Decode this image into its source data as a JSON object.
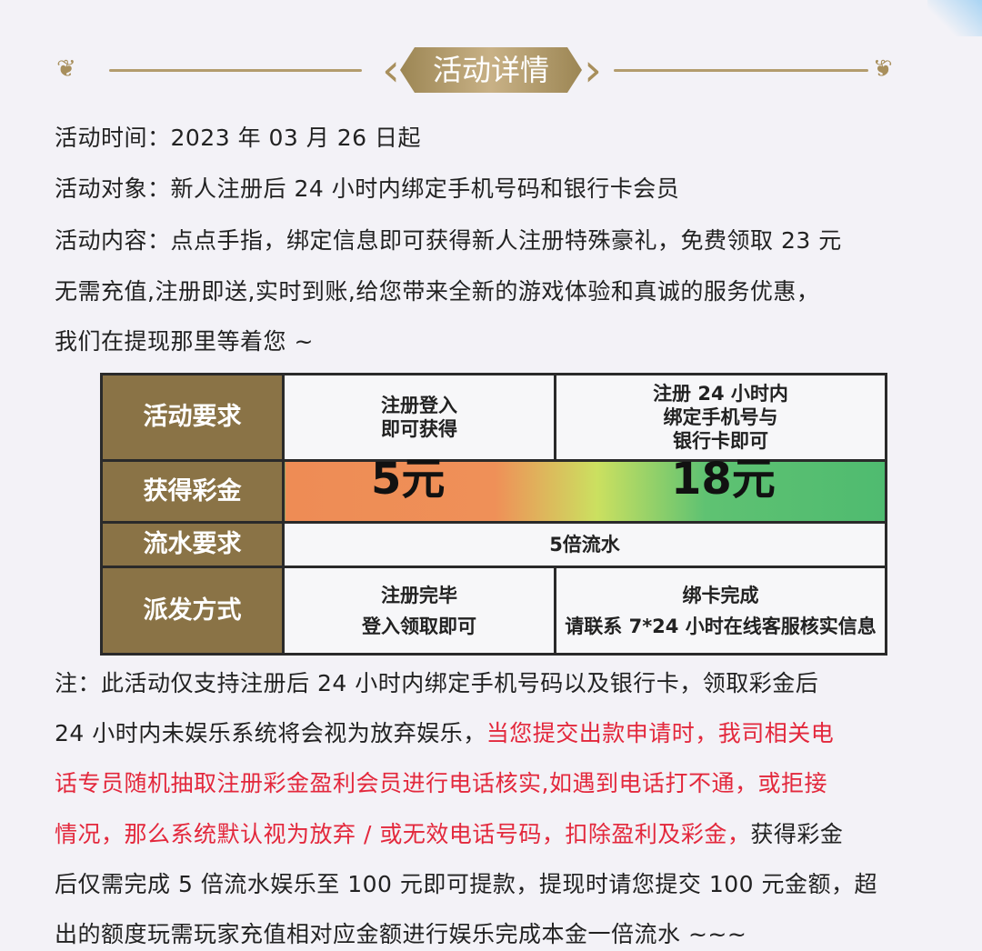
{
  "header": {
    "title": "活动详情"
  },
  "info": {
    "time": "活动时间：2023 年 03 月 26 日起",
    "target": "活动对象：新人注册后 24 小时内绑定手机号码和银行卡会员",
    "content_lines": [
      "活动内容：点点手指，绑定信息即可获得新人注册特殊豪礼，免费领取 23 元",
      "无需充值,注册即送,实时到账,给您带来全新的游戏体验和真诚的服务优惠，",
      "我们在提现那里等着您 ~"
    ]
  },
  "table": {
    "rows": [
      {
        "header": "活动要求",
        "cells": [
          [
            "注册登入",
            "即可获得"
          ],
          [
            "注册 24 小时内",
            "绑定手机号与",
            "银行卡即可"
          ]
        ]
      },
      {
        "header": "获得彩金",
        "cells": [
          [
            "5元"
          ],
          [
            "18元"
          ]
        ]
      },
      {
        "header": "流水要求",
        "cells": [
          [
            "5倍流水"
          ]
        ]
      },
      {
        "header": "派发方式",
        "cells": [
          [
            "注册完毕",
            "登入领取即可"
          ],
          [
            "绑卡完成",
            "请联系 7*24 小时在线客服核实信息"
          ]
        ]
      }
    ],
    "colors": {
      "header_bg": "#8a7346",
      "gradient_start": "#ee8c55",
      "gradient_end": "#4fbb70"
    }
  },
  "note": {
    "l1": "注：此活动仅支持注册后 24 小时内绑定手机号码以及银行卡，领取彩金后",
    "l2a": "24 小时内未娱乐系统将会视为放弃娱乐，",
    "l2b": "当您提交出款申请时，我司相关电",
    "l3": "话专员随机抽取注册彩金盈利会员进行电话核实,如遇到电话打不通，或拒接",
    "l4a": "情况，那么系统默认视为放弃 / 或无效电话号码，扣除盈利及彩金，",
    "l4b": "获得彩金",
    "l5": "后仅需完成 5 倍流水娱乐至 100 元即可提款，提现时请您提交 100 元金额，超",
    "l6": "出的额度玩需玩家充值相对应金额进行娱乐完成本金一倍流水 ~~~",
    "red_color": "#e3283c"
  }
}
